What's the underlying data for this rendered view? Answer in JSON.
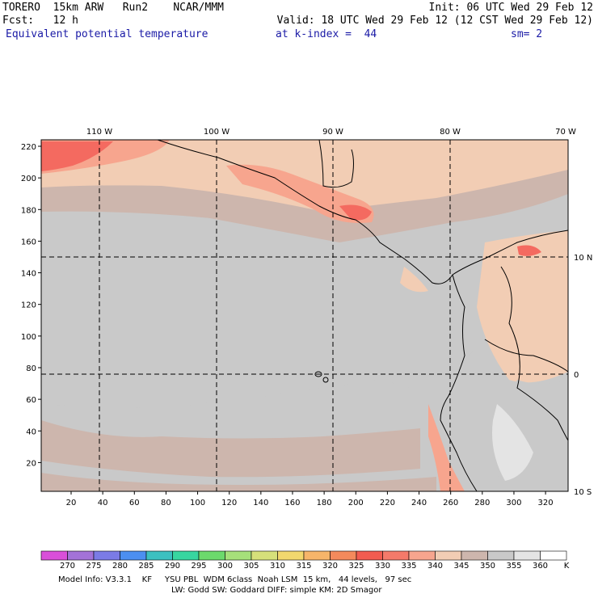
{
  "header": {
    "model": "TORERO",
    "resolution": "15km ARW",
    "run": "Run2",
    "org": "NCAR/MMM",
    "init": "Init: 06 UTC Wed 29 Feb 12",
    "fcst_label": "Fcst:",
    "fcst_value": "12 h",
    "valid": "Valid: 18 UTC Wed 29 Feb 12 (12 CST Wed 29 Feb 12)",
    "field": "Equivalent potential temperature",
    "level": "at k-index =  44",
    "smoothing": "sm= 2"
  },
  "map": {
    "top_lon_labels": [
      "110 W",
      "100 W",
      "90 W",
      "80 W",
      "70 W"
    ],
    "right_lat_labels": [
      "10 N",
      "0",
      "10 S"
    ],
    "y_grid_labels": [
      "220",
      "200",
      "180",
      "160",
      "140",
      "120",
      "100",
      "80",
      "60",
      "40",
      "20"
    ],
    "x_grid_labels": [
      "20",
      "40",
      "60",
      "80",
      "100",
      "120",
      "140",
      "160",
      "180",
      "200",
      "220",
      "240",
      "260",
      "280",
      "300",
      "320"
    ],
    "colors": {
      "c340": "#f2cdb4",
      "c345": "#cdb6ad",
      "c350": "#c9c9c9",
      "c335": "#f7a58e",
      "c330": "#f46a60",
      "c355": "#e4e4e4",
      "coast": "#000000",
      "grid": "#000000"
    }
  },
  "colorbar": {
    "colors": [
      "#d94fd9",
      "#a372d8",
      "#7b7be6",
      "#4c8ff0",
      "#3cc0c0",
      "#38d6a0",
      "#6cd96c",
      "#a6e07a",
      "#d6e07a",
      "#f2d86e",
      "#f6b56a",
      "#f48a5c",
      "#f25c50",
      "#f47a6a",
      "#f7a58e",
      "#f2cdb4",
      "#cdb6ad",
      "#c9c9c9",
      "#e4e4e4",
      "#ffffff"
    ],
    "labels": [
      "270",
      "275",
      "280",
      "285",
      "290",
      "295",
      "300",
      "305",
      "310",
      "315",
      "320",
      "325",
      "330",
      "335",
      "340",
      "345",
      "350",
      "355",
      "360"
    ],
    "unit": "K"
  },
  "footer": {
    "line1": "Model Info: V3.3.1    KF     YSU PBL  WDM 6class  Noah LSM  15 km,   44 levels,   97 sec",
    "line2": "LW: Godd SW: Goddard DIFF: simple KM: 2D Smagor"
  }
}
